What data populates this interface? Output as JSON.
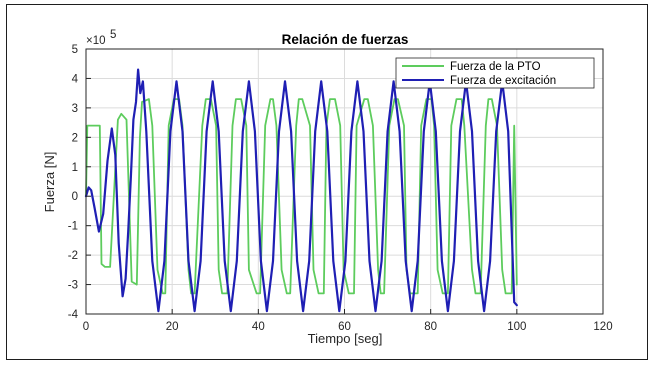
{
  "chart_data": {
    "type": "line",
    "title": "Relación de fuerzas",
    "xlabel": "Tiempo [seg]",
    "ylabel": "Fuerza [N]",
    "y_exponent_label": "×10",
    "y_exponent_power": "5",
    "xlim": [
      0,
      120
    ],
    "ylim": [
      -4,
      5
    ],
    "xticks": [
      "0",
      "20",
      "40",
      "60",
      "80",
      "100",
      "120"
    ],
    "yticks": [
      "-4",
      "-3",
      "-2",
      "-1",
      "0",
      "1",
      "2",
      "3",
      "4",
      "5"
    ],
    "grid": true,
    "legend_position": "top-right",
    "series": [
      {
        "name": "Fuerza de la PTO",
        "color": "#5dcc5d",
        "x": [
          0,
          0.3,
          0.6,
          3.2,
          3.6,
          4.4,
          5.6,
          7.4,
          8.2,
          9.4,
          10.6,
          11.8,
          12.5,
          13.0,
          14.6,
          15.4,
          16.6,
          17.8,
          18.4,
          19.2,
          20.4,
          21.6,
          22.4,
          23.8,
          24.4,
          25.2,
          27.0,
          27.8,
          29.0,
          30.2,
          30.8,
          31.6,
          32.8,
          34.0,
          34.8,
          36.0,
          37.2,
          37.8,
          39.6,
          40.4,
          41.6,
          42.8,
          43.4,
          44.2,
          45.4,
          46.6,
          47.4,
          48.8,
          49.4,
          50.2,
          52.0,
          52.8,
          54.0,
          55.2,
          55.8,
          56.6,
          57.8,
          59.0,
          59.8,
          61.0,
          62.2,
          62.8,
          64.6,
          65.4,
          66.6,
          67.8,
          68.4,
          69.2,
          70.4,
          71.6,
          72.4,
          73.8,
          74.4,
          75.2,
          77.0,
          77.8,
          79.0,
          80.2,
          80.8,
          81.6,
          82.8,
          84.0,
          84.8,
          86.0,
          87.2,
          87.8,
          89.6,
          90.4,
          91.6,
          92.8,
          93.4,
          94.2,
          95.4,
          96.6,
          97.4,
          98.8,
          99.4,
          100.0
        ],
        "y": [
          0,
          2.4,
          2.4,
          2.4,
          -2.3,
          -2.4,
          -2.4,
          2.6,
          2.8,
          2.6,
          -2.9,
          -3.0,
          2.0,
          3.2,
          3.3,
          2.4,
          -2.5,
          -3.3,
          -3.3,
          2.4,
          3.3,
          3.3,
          2.4,
          -2.5,
          -3.3,
          -3.3,
          2.4,
          3.3,
          3.3,
          2.4,
          -2.5,
          -3.3,
          -3.3,
          2.4,
          3.3,
          3.3,
          2.4,
          -2.5,
          -3.3,
          -3.3,
          2.4,
          3.3,
          3.3,
          2.4,
          -2.5,
          -3.3,
          -3.3,
          2.4,
          3.3,
          3.3,
          2.4,
          -2.5,
          -3.3,
          -3.3,
          2.4,
          3.3,
          3.3,
          2.4,
          -2.5,
          -3.3,
          -3.3,
          2.4,
          3.3,
          3.3,
          2.4,
          -2.5,
          -3.3,
          -3.3,
          2.4,
          3.3,
          3.3,
          2.4,
          -2.5,
          -3.3,
          -3.3,
          2.4,
          3.3,
          3.3,
          2.4,
          -2.5,
          -3.3,
          -3.3,
          2.4,
          3.3,
          3.3,
          2.4,
          -2.5,
          -3.3,
          -3.3,
          2.4,
          3.3,
          3.3,
          2.4,
          -2.5,
          -3.3,
          -3.3,
          2.4,
          -3.0
        ]
      },
      {
        "name": "Fuerza de excitación",
        "color": "#1f1fb4",
        "x": [
          0,
          0.6,
          1.2,
          2.0,
          3.0,
          4.0,
          5.0,
          6.0,
          6.8,
          7.6,
          8.5,
          9.2,
          9.8,
          10.4,
          11.0,
          11.6,
          12.1,
          12.6,
          13.2,
          14.0,
          15.4,
          16.8,
          18.2,
          19.6,
          21.0,
          22.4,
          23.8,
          25.2,
          26.6,
          28.0,
          29.4,
          30.8,
          32.2,
          33.6,
          35.0,
          36.4,
          37.8,
          39.2,
          40.6,
          42.0,
          43.4,
          44.8,
          46.2,
          47.6,
          49.0,
          50.4,
          51.8,
          53.2,
          54.6,
          56.0,
          57.4,
          58.8,
          60.2,
          61.6,
          63.0,
          64.4,
          65.8,
          67.2,
          68.6,
          70.0,
          71.4,
          72.8,
          74.2,
          75.6,
          77.0,
          78.4,
          79.8,
          81.2,
          82.6,
          84.0,
          85.4,
          86.8,
          88.2,
          89.6,
          91.0,
          92.4,
          93.8,
          95.2,
          96.6,
          98.0,
          99.4,
          100.0
        ],
        "y": [
          0,
          0.3,
          0.2,
          -0.4,
          -1.2,
          -0.6,
          1.2,
          2.3,
          1.4,
          -1.6,
          -3.4,
          -2.8,
          -1.2,
          0.6,
          2.6,
          3.2,
          4.3,
          3.5,
          3.9,
          2.2,
          -2.2,
          -3.9,
          -2.2,
          2.2,
          3.9,
          2.2,
          -2.2,
          -3.9,
          -2.2,
          2.2,
          3.9,
          2.2,
          -2.2,
          -3.9,
          -2.2,
          2.2,
          3.9,
          2.2,
          -2.2,
          -3.9,
          -2.2,
          2.2,
          3.9,
          2.2,
          -2.2,
          -3.9,
          -2.2,
          2.2,
          3.9,
          2.2,
          -2.2,
          -3.9,
          -2.2,
          2.2,
          3.9,
          2.2,
          -2.2,
          -3.9,
          -2.2,
          2.2,
          3.9,
          2.2,
          -2.2,
          -3.9,
          -2.2,
          2.2,
          3.9,
          2.2,
          -2.2,
          -3.9,
          -2.2,
          2.2,
          3.9,
          2.2,
          -2.2,
          -3.9,
          -2.2,
          2.2,
          3.9,
          2.2,
          -3.6,
          -3.7
        ]
      }
    ]
  }
}
